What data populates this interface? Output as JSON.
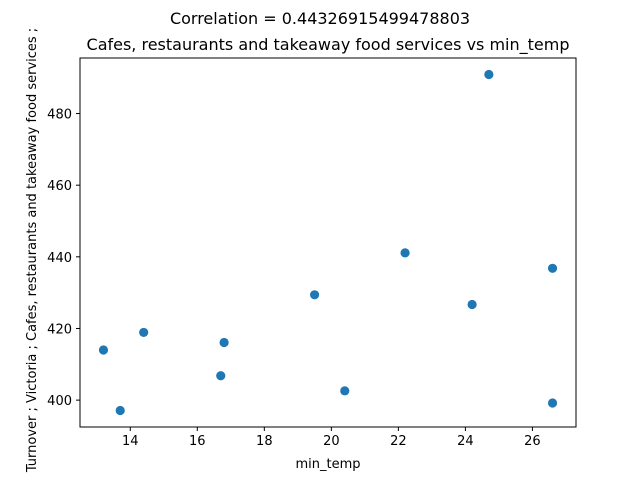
{
  "figure": {
    "suptitle": "Correlation = 0.44326915499478803"
  },
  "chart_data": {
    "type": "scatter",
    "title": "Cafes, restaurants and takeaway food services vs min_temp",
    "xlabel": "min_temp",
    "ylabel": "Turnover ;  Victoria ;  Cafes, restaurants and takeaway food services ;",
    "xlim": [
      12.5,
      27.3
    ],
    "ylim": [
      392.5,
      495.5
    ],
    "xticks": [
      14,
      16,
      18,
      20,
      22,
      24,
      26
    ],
    "yticks": [
      400,
      420,
      440,
      460,
      480
    ],
    "grid": false,
    "marker_color": "#1f77b4",
    "points": [
      {
        "x": 13.2,
        "y": 414.0
      },
      {
        "x": 13.7,
        "y": 397.1
      },
      {
        "x": 14.4,
        "y": 418.9
      },
      {
        "x": 16.7,
        "y": 406.8
      },
      {
        "x": 16.8,
        "y": 416.1
      },
      {
        "x": 19.5,
        "y": 429.4
      },
      {
        "x": 20.4,
        "y": 402.6
      },
      {
        "x": 22.2,
        "y": 441.1
      },
      {
        "x": 24.2,
        "y": 426.7
      },
      {
        "x": 24.7,
        "y": 490.9
      },
      {
        "x": 26.6,
        "y": 436.8
      },
      {
        "x": 26.6,
        "y": 399.2
      }
    ]
  }
}
